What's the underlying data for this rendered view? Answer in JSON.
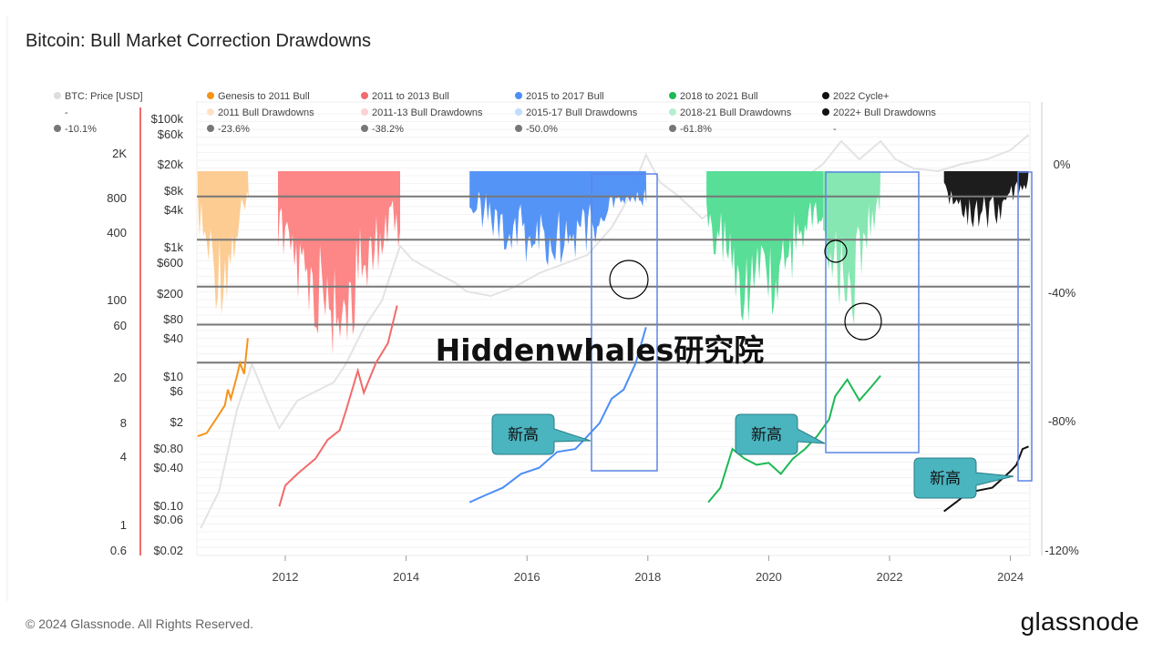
{
  "header": {
    "title": "Bitcoin: Bull Market Correction Drawdowns"
  },
  "watermark": "Hiddenwhales研究院",
  "callouts": [
    "新高",
    "新高",
    "新高"
  ],
  "footer": {
    "copyright": "© 2024 Glassnode. All Rights Reserved.",
    "brand": "glassnode"
  },
  "colors": {
    "genesis": "#f7931a",
    "genesis_dd": "#fcc98d",
    "b2013": "#f26b6b",
    "b2013_dd": "#fd8080",
    "b2017": "#4c8ef7",
    "b2017_dd": "#8cc0f7",
    "b2021": "#1db954",
    "b2021_dd": "#4fdc91",
    "b2022": "#111111",
    "b2022_dd": "#111111",
    "price": "#e3e3e3",
    "callout": "#4ab4bf",
    "box": "#5b85e6"
  },
  "chart_data": {
    "type": "line",
    "title": "Bitcoin: Bull Market Correction Drawdowns",
    "legend": {
      "rows": [
        [
          {
            "label": "BTC: Price [USD]",
            "color": "#dddddd"
          },
          {
            "label": "Genesis to 2011 Bull",
            "color": "#f7931a"
          },
          {
            "label": "2011 to 2013 Bull",
            "color": "#f26b6b"
          },
          {
            "label": "2015 to 2017 Bull",
            "color": "#4c8ef7"
          },
          {
            "label": "2018 to 2021 Bull",
            "color": "#1db954"
          },
          {
            "label": "2022 Cycle+",
            "color": "#111111"
          }
        ],
        [
          {
            "label": "-",
            "color": ""
          },
          {
            "label": "2011 Bull Drawdowns",
            "color": "#fde3c6"
          },
          {
            "label": "2011-13 Bull Drawdowns",
            "color": "#fcd2d2"
          },
          {
            "label": "2015-17 Bull Drawdowns",
            "color": "#c2dcfb"
          },
          {
            "label": "2018-21 Bull Drawdowns",
            "color": "#b6efcf"
          },
          {
            "label": "2022+ Bull Drawdowns",
            "color": "#111111"
          }
        ],
        [
          {
            "label": "-10.1%",
            "color": "#777777"
          },
          {
            "label": "-23.6%",
            "color": "#777777"
          },
          {
            "label": "-38.2%",
            "color": "#777777"
          },
          {
            "label": "-50.0%",
            "color": "#777777"
          },
          {
            "label": "-61.8%",
            "color": "#777777"
          },
          {
            "label": "-",
            "color": ""
          }
        ]
      ]
    },
    "y_price_ticks": [
      "2K",
      "800",
      "400",
      "100",
      "60",
      "20",
      "8",
      "4",
      "1",
      "0.6"
    ],
    "y_cycle_ticks": [
      "$100k",
      "$60k",
      "$20k",
      "$8k",
      "$4k",
      "$1k",
      "$600",
      "$200",
      "$80",
      "$40",
      "$10",
      "$6",
      "$2",
      "$0.80",
      "$0.40",
      "$0.10",
      "$0.06",
      "$0.02"
    ],
    "y_drawdown_ticks": [
      "0%",
      "-40%",
      "-80%",
      "-120%"
    ],
    "ylim_drawdown": [
      -120,
      0
    ],
    "x_ticks": [
      "2012",
      "2014",
      "2016",
      "2018",
      "2020",
      "2022",
      "2024"
    ],
    "fib_levels": [
      -10.1,
      -23.6,
      -38.2,
      -50.0,
      -61.8
    ],
    "series": [
      {
        "name": "Genesis to 2011 Bull",
        "points": [
          [
            2010.55,
            0.8
          ],
          [
            2010.7,
            0.9
          ],
          [
            2010.85,
            1.5
          ],
          [
            2011.0,
            2.5
          ],
          [
            2011.05,
            4.5
          ],
          [
            2011.1,
            3.2
          ],
          [
            2011.2,
            7.5
          ],
          [
            2011.25,
            12
          ],
          [
            2011.32,
            8
          ],
          [
            2011.38,
            30
          ]
        ]
      },
      {
        "name": "2011 to 2013 Bull",
        "points": [
          [
            2011.9,
            0.06
          ],
          [
            2012.0,
            0.13
          ],
          [
            2012.2,
            0.2
          ],
          [
            2012.5,
            0.35
          ],
          [
            2012.7,
            0.7
          ],
          [
            2012.9,
            1.0
          ],
          [
            2013.0,
            2.0
          ],
          [
            2013.2,
            9
          ],
          [
            2013.3,
            4
          ],
          [
            2013.5,
            12
          ],
          [
            2013.7,
            25
          ],
          [
            2013.85,
            100
          ]
        ]
      },
      {
        "name": "2015 to 2017 Bull",
        "points": [
          [
            2015.05,
            0.07
          ],
          [
            2015.3,
            0.09
          ],
          [
            2015.6,
            0.12
          ],
          [
            2015.9,
            0.2
          ],
          [
            2016.2,
            0.25
          ],
          [
            2016.5,
            0.45
          ],
          [
            2016.8,
            0.5
          ],
          [
            2017.0,
            0.8
          ],
          [
            2017.2,
            1.3
          ],
          [
            2017.4,
            3.2
          ],
          [
            2017.6,
            4.5
          ],
          [
            2017.8,
            12
          ],
          [
            2017.97,
            45
          ]
        ]
      },
      {
        "name": "2018 to 2021 Bull",
        "points": [
          [
            2019.0,
            0.07
          ],
          [
            2019.2,
            0.12
          ],
          [
            2019.4,
            0.5
          ],
          [
            2019.6,
            0.35
          ],
          [
            2019.8,
            0.28
          ],
          [
            2020.0,
            0.3
          ],
          [
            2020.2,
            0.2
          ],
          [
            2020.4,
            0.35
          ],
          [
            2020.6,
            0.5
          ],
          [
            2020.8,
            0.8
          ],
          [
            2021.0,
            1.5
          ],
          [
            2021.1,
            3.5
          ],
          [
            2021.3,
            6.5
          ],
          [
            2021.5,
            3
          ],
          [
            2021.7,
            5
          ],
          [
            2021.85,
            7.5
          ]
        ]
      },
      {
        "name": "2022 Cycle+",
        "points": [
          [
            2022.9,
            0.05
          ],
          [
            2023.1,
            0.07
          ],
          [
            2023.3,
            0.1
          ],
          [
            2023.5,
            0.11
          ],
          [
            2023.7,
            0.12
          ],
          [
            2023.9,
            0.18
          ],
          [
            2024.0,
            0.22
          ],
          [
            2024.1,
            0.28
          ],
          [
            2024.2,
            0.5
          ],
          [
            2024.3,
            0.55
          ]
        ]
      }
    ]
  }
}
